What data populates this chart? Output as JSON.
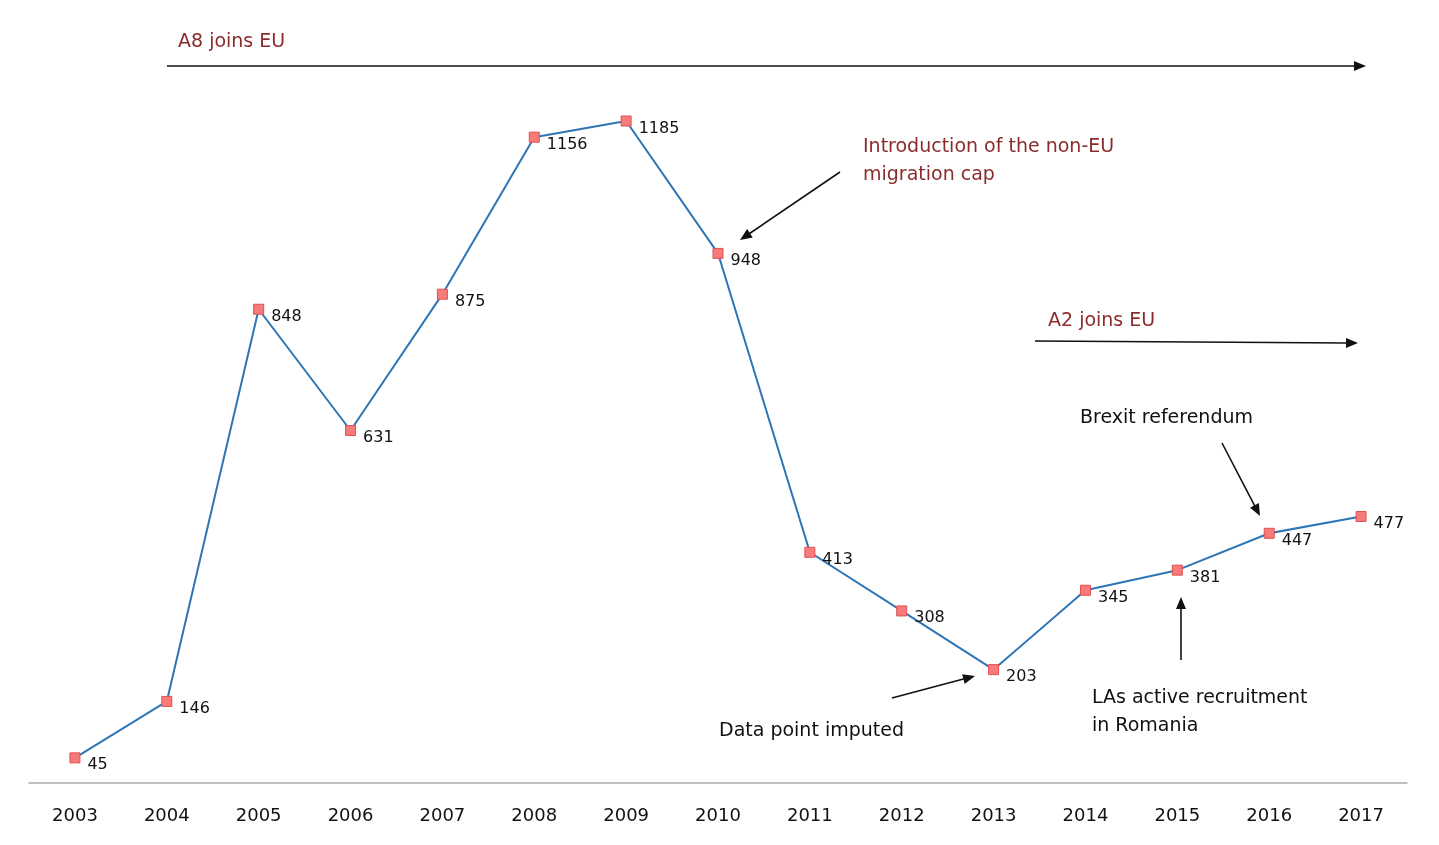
{
  "chart_data": {
    "type": "line",
    "categories": [
      "2003",
      "2004",
      "2005",
      "2006",
      "2007",
      "2008",
      "2009",
      "2010",
      "2011",
      "2012",
      "2013",
      "2014",
      "2015",
      "2016",
      "2017"
    ],
    "values": [
      45,
      146,
      848,
      631,
      875,
      1156,
      1185,
      948,
      413,
      308,
      203,
      345,
      381,
      447,
      477
    ],
    "color": "#2e75b6",
    "marker": "square",
    "data_labels": true,
    "grid": false,
    "tick_labels": "x",
    "annotations": [
      "A8 joins EU",
      "Introduction of the non-EU migration cap",
      "A2 joins EU",
      "Brexit referendum",
      "Data point imputed",
      "LAs active recruitment in Romania"
    ]
  }
}
